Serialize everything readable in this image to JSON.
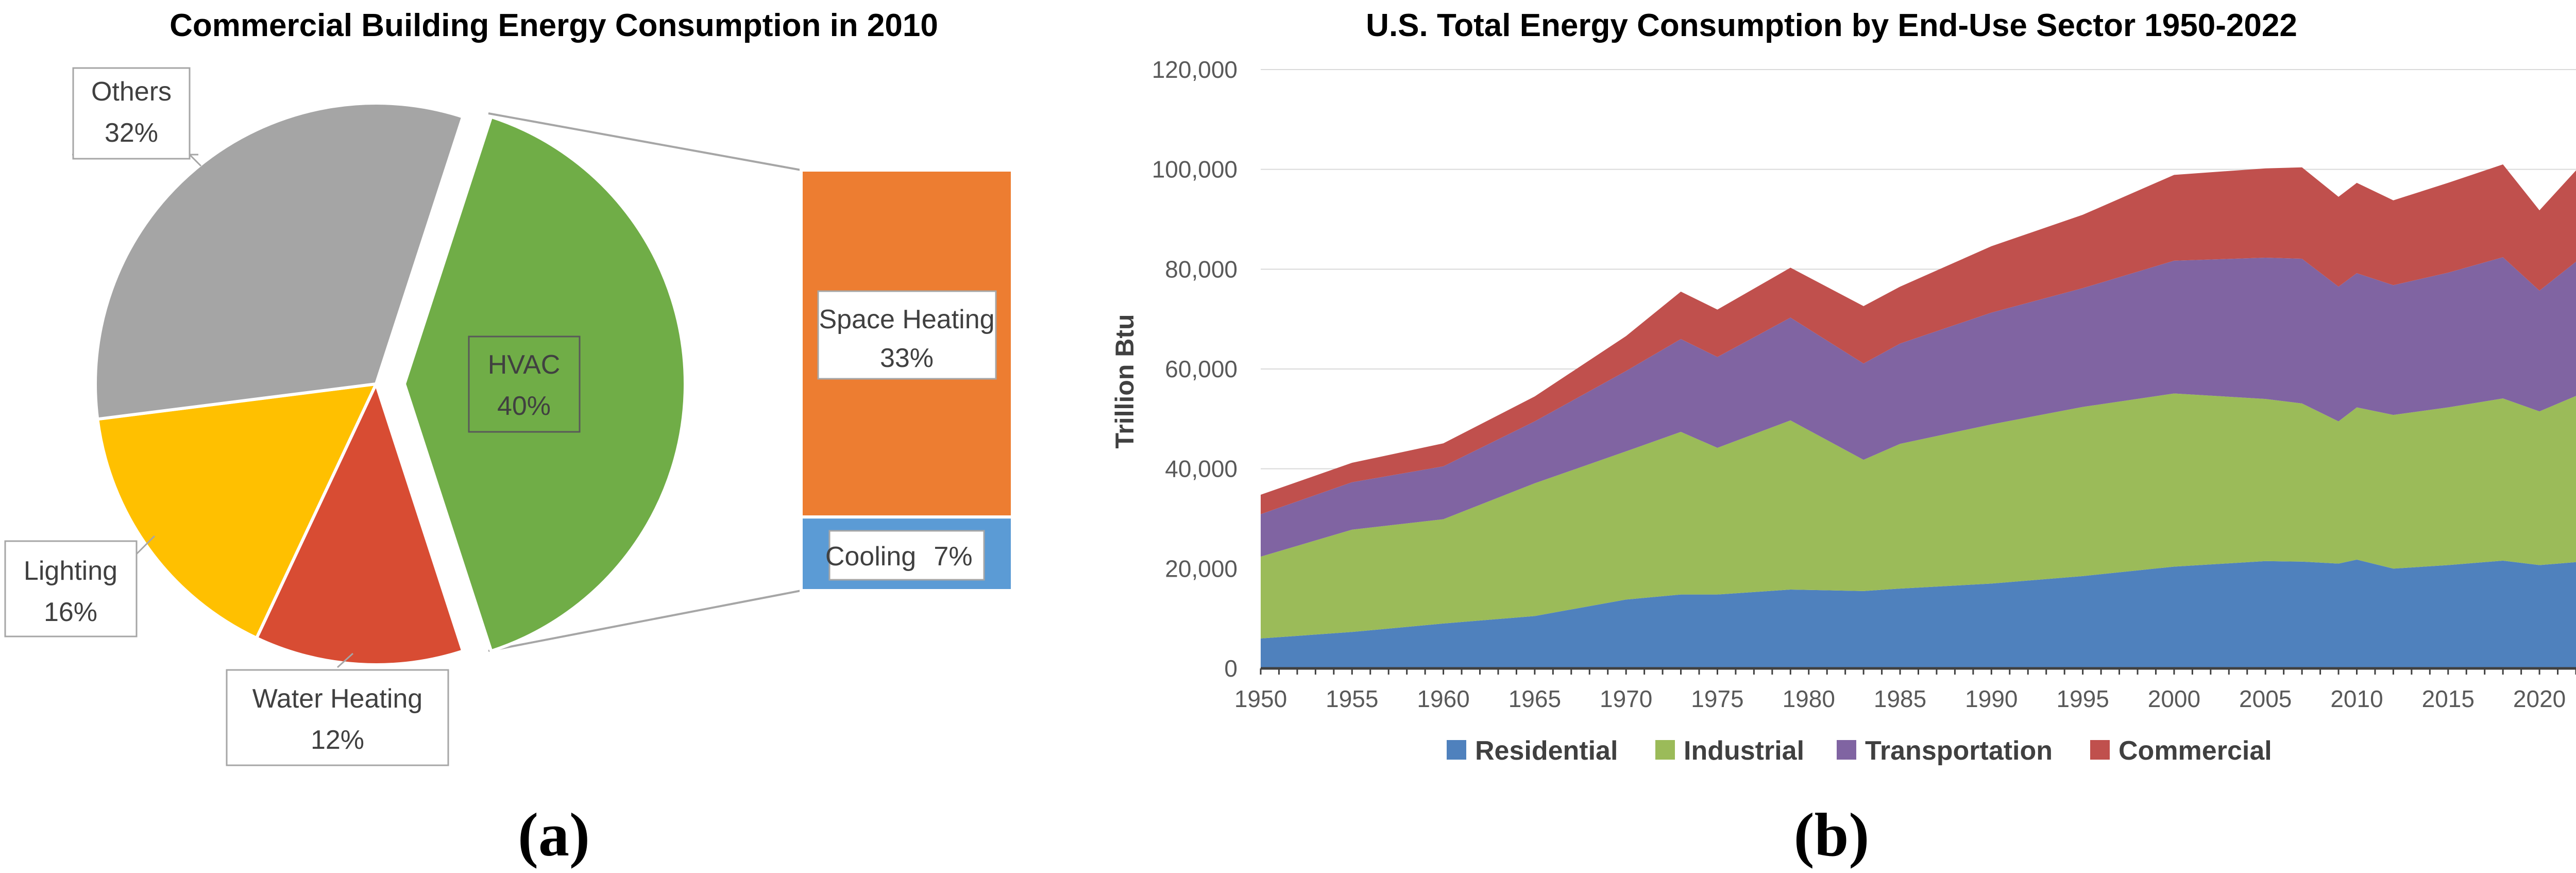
{
  "panel_labels": {
    "a": "(a)",
    "b": "(b)"
  },
  "chart_data": [
    {
      "type": "pie",
      "title": "Commercial Building Energy Consumption in 2010",
      "slices": [
        {
          "label": "HVAC",
          "value": 40,
          "text": "40%",
          "color": "#70ad47",
          "exploded": true
        },
        {
          "label": "Water Heating",
          "value": 12,
          "text": "12%",
          "color": "#d84c33"
        },
        {
          "label": "Lighting",
          "value": 16,
          "text": "16%",
          "color": "#ffc000"
        },
        {
          "label": "Others",
          "value": 32,
          "text": "32%",
          "color": "#a5a5a5"
        }
      ],
      "breakdown": {
        "of": "HVAC",
        "items": [
          {
            "label": "Space Heating",
            "value": 33,
            "text": "33%",
            "color": "#ed7d31"
          },
          {
            "label": "Cooling",
            "value": 7,
            "text": "7%",
            "color": "#5b9bd5"
          }
        ]
      }
    },
    {
      "type": "area",
      "stacked": true,
      "title": "U.S. Total Energy Consumption by End-Use Sector 1950-2022",
      "ylabel": "Trillion Btu",
      "xlabel": "",
      "ylim": [
        0,
        120000
      ],
      "yticks": [
        "0",
        "20,000",
        "40,000",
        "60,000",
        "80,000",
        "100,000",
        "120,000"
      ],
      "xticks": [
        "1950",
        "1955",
        "1960",
        "1965",
        "1970",
        "1975",
        "1980",
        "1985",
        "1990",
        "1995",
        "2000",
        "2005",
        "2010",
        "2015",
        "2020"
      ],
      "grid": true,
      "legend": "bottom",
      "x": [
        1950,
        1955,
        1960,
        1965,
        1970,
        1973,
        1975,
        1979,
        1983,
        1985,
        1990,
        1995,
        2000,
        2005,
        2007,
        2009,
        2010,
        2012,
        2015,
        2018,
        2020,
        2022
      ],
      "series": [
        {
          "name": "Residential",
          "color": "#4f81bd",
          "values": [
            6000,
            7300,
            9000,
            10500,
            13800,
            14800,
            14800,
            15800,
            15500,
            16000,
            17000,
            18500,
            20400,
            21500,
            21400,
            21000,
            21800,
            20000,
            20700,
            21600,
            20700,
            21300
          ]
        },
        {
          "name": "Industrial",
          "color": "#9bbb59",
          "values": [
            16400,
            20500,
            20900,
            26600,
            29700,
            32600,
            29400,
            33900,
            26300,
            29000,
            31900,
            33900,
            34700,
            32500,
            31700,
            28500,
            30500,
            30800,
            31600,
            32500,
            30800,
            33300
          ]
        },
        {
          "name": "Transportation",
          "color": "#8064a2",
          "values": [
            8500,
            9500,
            10600,
            12400,
            16100,
            18600,
            18200,
            20600,
            19300,
            20100,
            22400,
            23800,
            26600,
            28300,
            29000,
            27000,
            26900,
            26000,
            27000,
            28300,
            24200,
            26900
          ]
        },
        {
          "name": "Commercial",
          "color": "#c0504d",
          "values": [
            3900,
            3900,
            4600,
            5000,
            7000,
            9500,
            9500,
            10000,
            11500,
            11400,
            13300,
            14700,
            17200,
            17900,
            18300,
            18000,
            18100,
            17000,
            18000,
            18600,
            16100,
            18300
          ]
        }
      ]
    }
  ]
}
